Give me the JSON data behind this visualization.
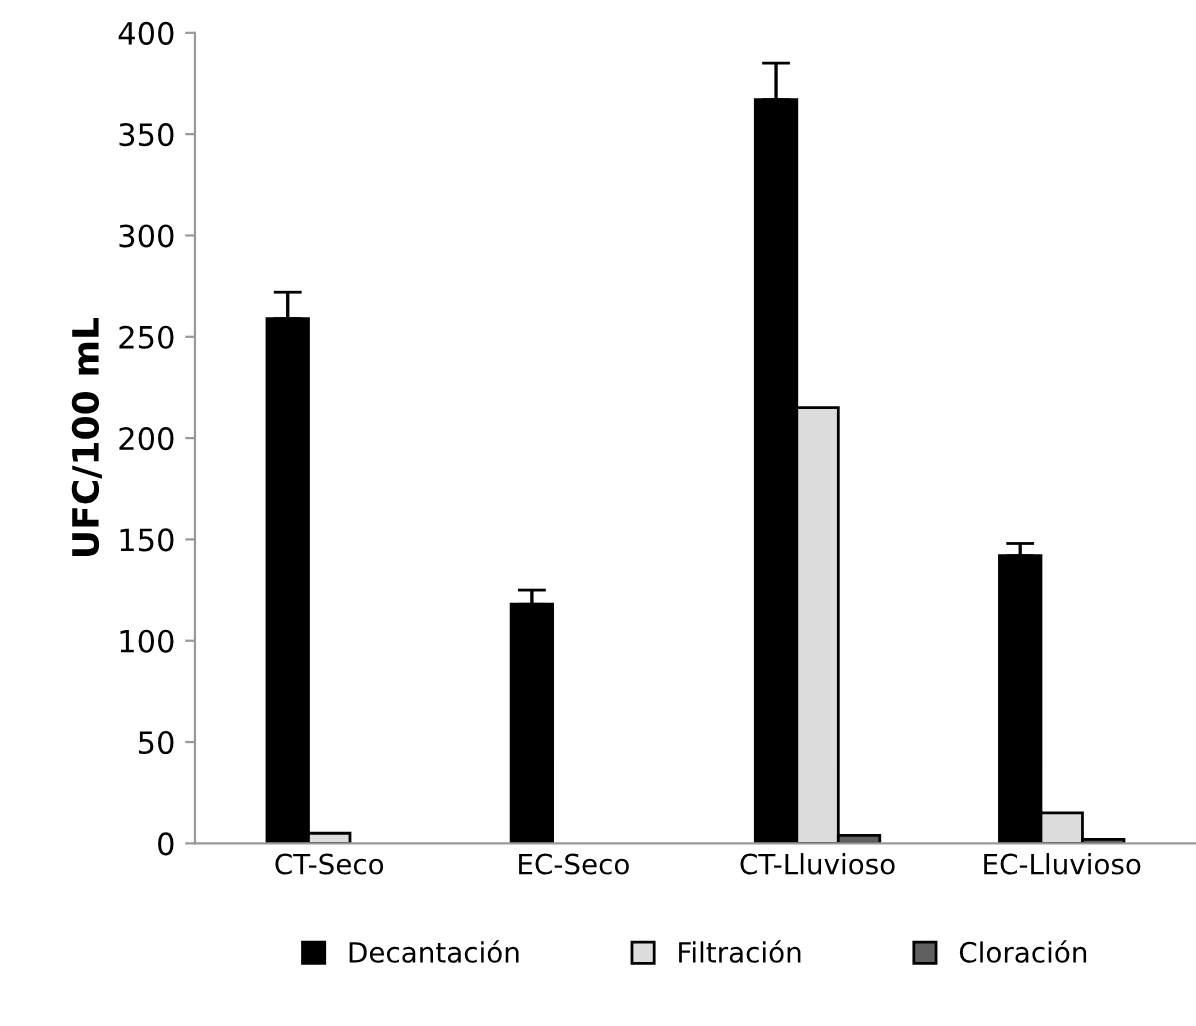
{
  "chart_data": {
    "type": "bar",
    "ylabel": "UFC/100 mL",
    "categories": [
      "CT-Seco",
      "EC-Seco",
      "CT-Lluvioso",
      "EC-Lluvioso"
    ],
    "series": [
      {
        "name": "Decantación",
        "color": "#000000",
        "values": [
          259,
          118,
          367,
          142
        ],
        "errors": [
          13,
          7,
          18,
          6
        ]
      },
      {
        "name": "Filtración",
        "color": "#dcdcdc",
        "values": [
          5,
          null,
          215,
          15
        ]
      },
      {
        "name": "Cloración",
        "color": "#606060",
        "values": [
          null,
          null,
          4,
          2
        ]
      }
    ],
    "ylim": [
      0,
      400
    ],
    "yticks": [
      0,
      50,
      100,
      150,
      200,
      250,
      300,
      350,
      400
    ],
    "grid": false,
    "legend": "bottom"
  }
}
